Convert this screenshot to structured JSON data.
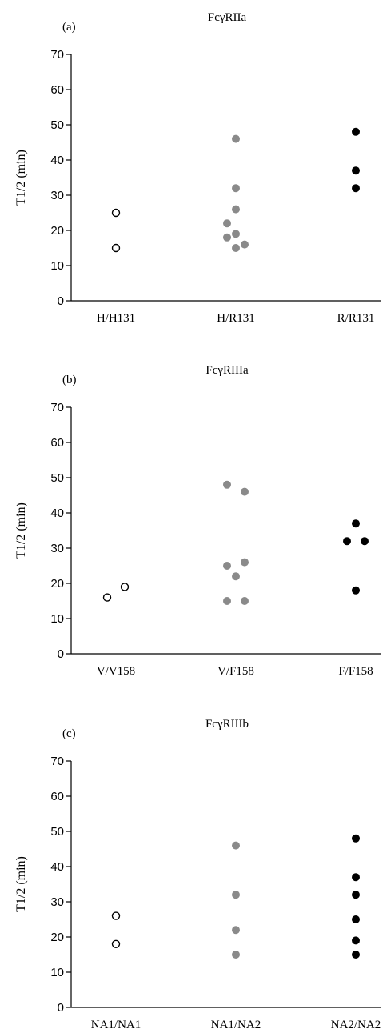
{
  "chart_data": [
    {
      "type": "scatter",
      "panel_label": "(a)",
      "title": "FcγRIIa",
      "ylabel": "T1/2 (min)",
      "xlabel": "",
      "ylim": [
        0,
        70
      ],
      "yticks": [
        0,
        10,
        20,
        30,
        40,
        50,
        60,
        70
      ],
      "grid": false,
      "categories": [
        "H/H131",
        "H/R131",
        "R/R131"
      ],
      "series": [
        {
          "category": "H/H131",
          "marker": "open-circle",
          "color": "#000000",
          "points": [
            {
              "offset": 0,
              "y": 25
            },
            {
              "offset": 0,
              "y": 15
            }
          ]
        },
        {
          "category": "H/R131",
          "marker": "filled-circle",
          "color": "#8a8a8a",
          "points": [
            {
              "offset": 0,
              "y": 46
            },
            {
              "offset": 0,
              "y": 32
            },
            {
              "offset": 0,
              "y": 26
            },
            {
              "offset": -1,
              "y": 22
            },
            {
              "offset": -1,
              "y": 18
            },
            {
              "offset": 0,
              "y": 19
            },
            {
              "offset": 0,
              "y": 15
            },
            {
              "offset": 1,
              "y": 16
            }
          ]
        },
        {
          "category": "R/R131",
          "marker": "filled-circle",
          "color": "#000000",
          "points": [
            {
              "offset": 0,
              "y": 48
            },
            {
              "offset": 0,
              "y": 37
            },
            {
              "offset": 0,
              "y": 32
            }
          ]
        }
      ]
    },
    {
      "type": "scatter",
      "panel_label": "(b)",
      "title": "FcγRIIIa",
      "ylabel": "T1/2 (min)",
      "xlabel": "",
      "ylim": [
        0,
        70
      ],
      "yticks": [
        0,
        10,
        20,
        30,
        40,
        50,
        60,
        70
      ],
      "grid": false,
      "categories": [
        "V/V158",
        "V/F158",
        "F/F158"
      ],
      "series": [
        {
          "category": "V/V158",
          "marker": "open-circle",
          "color": "#000000",
          "points": [
            {
              "offset": -1,
              "y": 16
            },
            {
              "offset": 1,
              "y": 19
            }
          ]
        },
        {
          "category": "V/F158",
          "marker": "filled-circle",
          "color": "#8a8a8a",
          "points": [
            {
              "offset": -1,
              "y": 48
            },
            {
              "offset": 1,
              "y": 46
            },
            {
              "offset": -1,
              "y": 25
            },
            {
              "offset": 1,
              "y": 26
            },
            {
              "offset": 0,
              "y": 22
            },
            {
              "offset": -1,
              "y": 15
            },
            {
              "offset": 1,
              "y": 15
            }
          ]
        },
        {
          "category": "F/F158",
          "marker": "filled-circle",
          "color": "#000000",
          "points": [
            {
              "offset": 0,
              "y": 37
            },
            {
              "offset": -1,
              "y": 32
            },
            {
              "offset": 1,
              "y": 32
            },
            {
              "offset": 0,
              "y": 18
            }
          ]
        }
      ]
    },
    {
      "type": "scatter",
      "panel_label": "(c)",
      "title": "FcγRIIIb",
      "ylabel": "T1/2 (min)",
      "xlabel": "",
      "ylim": [
        0,
        70
      ],
      "yticks": [
        0,
        10,
        20,
        30,
        40,
        50,
        60,
        70
      ],
      "grid": false,
      "categories": [
        "NA1/NA1",
        "NA1/NA2",
        "NA2/NA2"
      ],
      "series": [
        {
          "category": "NA1/NA1",
          "marker": "open-circle",
          "color": "#000000",
          "points": [
            {
              "offset": 0,
              "y": 26
            },
            {
              "offset": 0,
              "y": 18
            }
          ]
        },
        {
          "category": "NA1/NA2",
          "marker": "filled-circle",
          "color": "#8a8a8a",
          "points": [
            {
              "offset": 0,
              "y": 46
            },
            {
              "offset": 0,
              "y": 32
            },
            {
              "offset": 0,
              "y": 22
            },
            {
              "offset": 0,
              "y": 15
            }
          ]
        },
        {
          "category": "NA2/NA2",
          "marker": "filled-circle",
          "color": "#000000",
          "points": [
            {
              "offset": 0,
              "y": 48
            },
            {
              "offset": 0,
              "y": 37
            },
            {
              "offset": 0,
              "y": 32
            },
            {
              "offset": 0,
              "y": 25
            },
            {
              "offset": 0,
              "y": 19
            },
            {
              "offset": 0,
              "y": 15
            }
          ]
        }
      ]
    }
  ]
}
